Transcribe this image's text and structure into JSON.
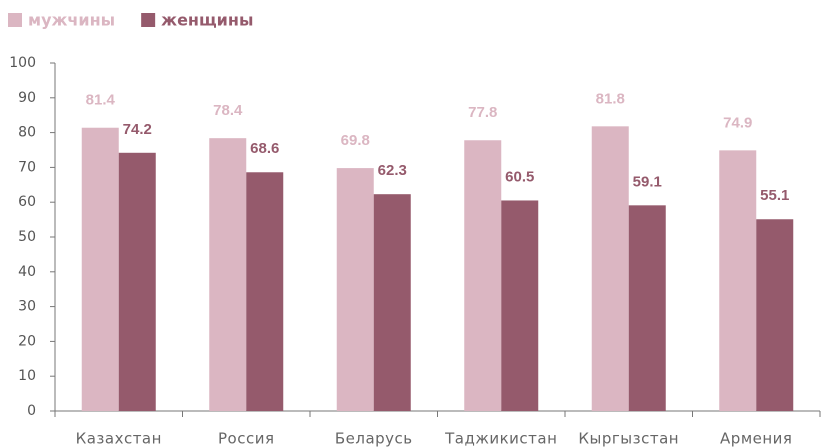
{
  "chart_data": {
    "type": "bar",
    "categories": [
      "Казахстан",
      "Россия",
      "Беларусь",
      "Таджикистан",
      "Кыргызстан",
      "Армения"
    ],
    "series": [
      {
        "name": "мужчины",
        "color": "#dbb6c2",
        "values": [
          81.4,
          78.4,
          69.8,
          77.8,
          81.8,
          74.9
        ]
      },
      {
        "name": "женщины",
        "color": "#955a6c",
        "values": [
          74.2,
          68.6,
          62.3,
          60.5,
          59.1,
          55.1
        ]
      }
    ],
    "ylim": [
      0,
      100
    ],
    "yticks": [
      0,
      10,
      20,
      30,
      40,
      50,
      60,
      70,
      80,
      90,
      100
    ]
  }
}
